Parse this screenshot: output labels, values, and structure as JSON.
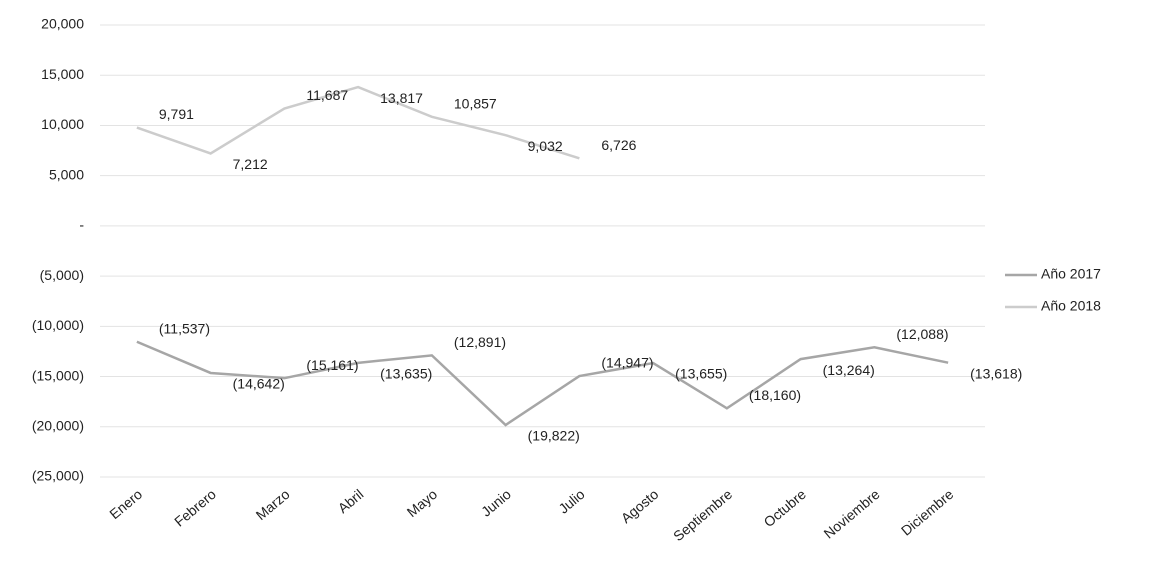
{
  "chart_data": {
    "type": "line",
    "categories": [
      "Enero",
      "Febrero",
      "Marzo",
      "Abril",
      "Mayo",
      "Junio",
      "Julio",
      "Agosto",
      "Septiembre",
      "Octubre",
      "Noviembre",
      "Diciembre"
    ],
    "series": [
      {
        "name": "Año 2017",
        "color": "#a6a6a6",
        "values": [
          -11537,
          -14642,
          -15161,
          -13635,
          -12891,
          -19822,
          -14947,
          -13655,
          -18160,
          -13264,
          -12088,
          -13618
        ],
        "value_labels": [
          "(11,537)",
          "(14,642)",
          "(15,161)",
          "(13,635)",
          "(12,891)",
          "(19,822)",
          "(14,947)",
          "(13,655)",
          "(18,160)",
          "(13,264)",
          "(12,088)",
          "(13,618)"
        ]
      },
      {
        "name": "Año 2018",
        "color": "#cccccc",
        "values": [
          9791,
          7212,
          11687,
          13817,
          10857,
          9032,
          6726,
          null,
          null,
          null,
          null,
          null
        ],
        "value_labels": [
          "9,791",
          "7,212",
          "11,687",
          "13,817",
          "10,857",
          "9,032",
          "6,726",
          null,
          null,
          null,
          null,
          null
        ]
      }
    ],
    "ylim": [
      -25000,
      20000
    ],
    "yticks": [
      {
        "value": 20000,
        "label": "20,000"
      },
      {
        "value": 15000,
        "label": "15,000"
      },
      {
        "value": 10000,
        "label": "10,000"
      },
      {
        "value": 5000,
        "label": "5,000"
      },
      {
        "value": 0,
        "label": "-"
      },
      {
        "value": -5000,
        "label": "(5,000)"
      },
      {
        "value": -10000,
        "label": "(10,000)"
      },
      {
        "value": -15000,
        "label": "(15,000)"
      },
      {
        "value": -20000,
        "label": "(20,000)"
      },
      {
        "value": -25000,
        "label": "(25,000)"
      }
    ],
    "grid": true,
    "legend": "right"
  }
}
